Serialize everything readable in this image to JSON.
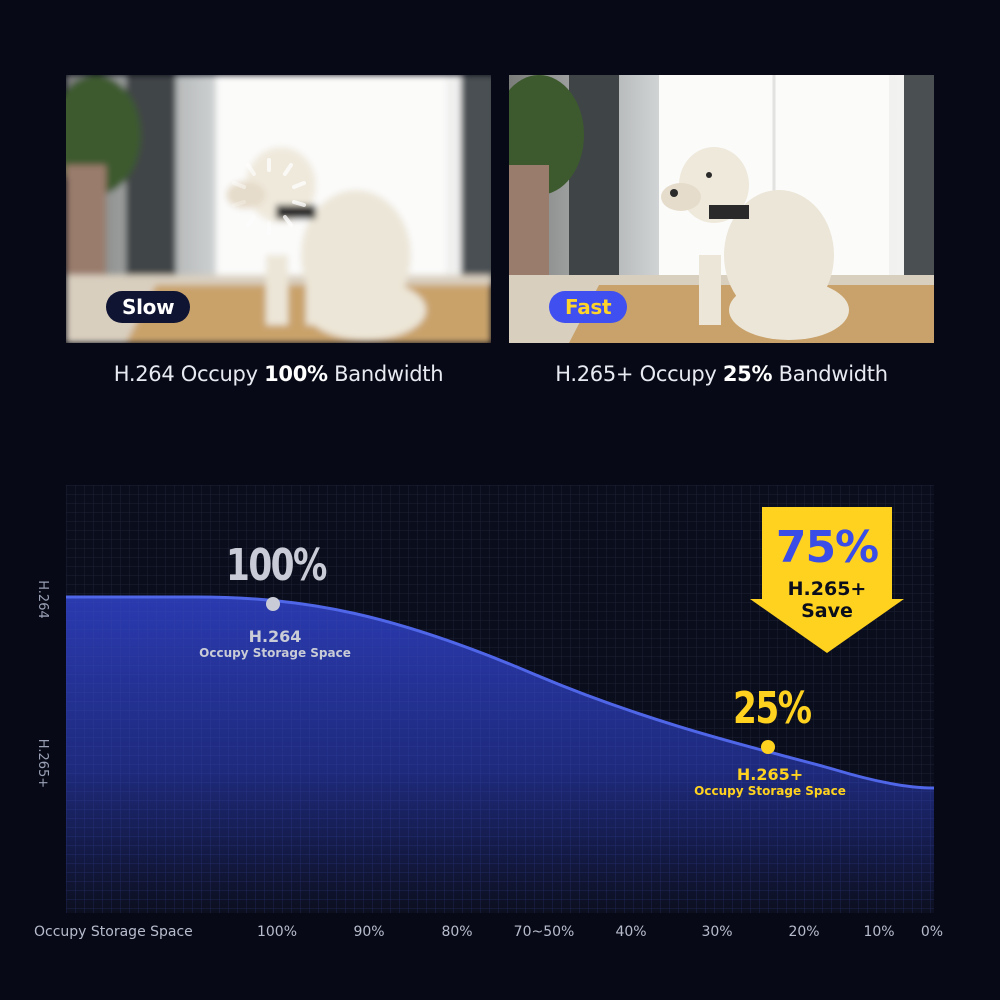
{
  "comparison": {
    "left": {
      "badge": "Slow",
      "caption_prefix": "H.264 Occupy ",
      "caption_value": "100%",
      "caption_suffix": " Bandwidth"
    },
    "right": {
      "badge": "Fast",
      "caption_prefix": "H.265+ Occupy ",
      "caption_value": "25%",
      "caption_suffix": " Bandwidth"
    }
  },
  "chart_data": {
    "type": "area",
    "y_axis_labels": [
      "H.264",
      "H.265+"
    ],
    "x_title": "Occupy Storage Space",
    "x_ticks": [
      "100%",
      "90%",
      "80%",
      "70~50%",
      "40%",
      "30%",
      "20%",
      "10%",
      "0%"
    ],
    "grid": true,
    "points": [
      {
        "value": "100%",
        "name": "H.264",
        "label": "Occupy Storage Space",
        "color": "#c9ccd6"
      },
      {
        "value": "25%",
        "name": "H.265+",
        "label": "Occupy Storage Space",
        "color": "#ffd21f"
      }
    ],
    "savings": {
      "value": "75%",
      "line1": "H.265+",
      "line2": "Save"
    }
  },
  "colors": {
    "background": "#070a16",
    "area_top": "#2a3ab0",
    "area_bottom": "#0c0f1e",
    "accent_yellow": "#ffd21f",
    "badge_blue": "#3f4ff0"
  }
}
